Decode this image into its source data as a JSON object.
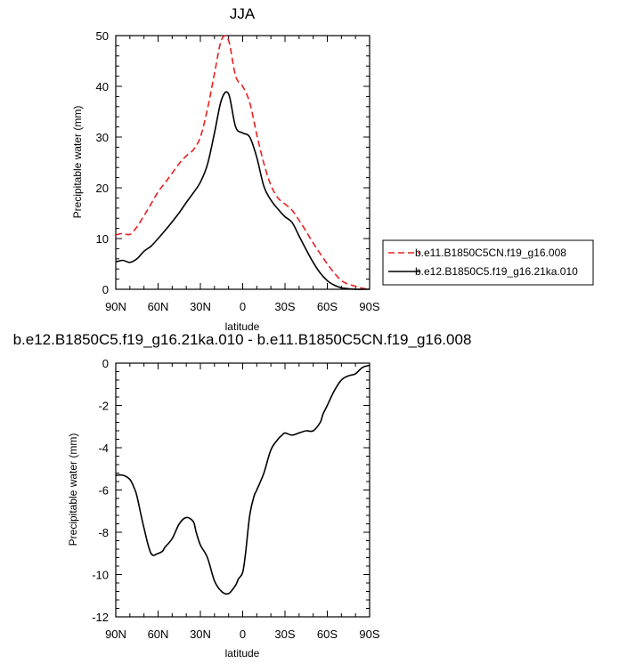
{
  "chart_data": [
    {
      "type": "line",
      "title": "JJA",
      "xlabel": "latitude",
      "ylabel": "Precipitable water (mm)",
      "xlim": [
        90,
        -90
      ],
      "ylim": [
        0,
        50
      ],
      "x_ticks": [
        90,
        60,
        30,
        0,
        -30,
        -60,
        -90
      ],
      "x_tick_labels": [
        "90N",
        "60N",
        "30N",
        "0",
        "30S",
        "60S",
        "90S"
      ],
      "y_ticks": [
        0,
        10,
        20,
        30,
        40,
        50
      ],
      "y_tick_labels": [
        "0",
        "10",
        "20",
        "30",
        "40",
        "50"
      ],
      "legend_position": "outside-right",
      "x": [
        90,
        85,
        80,
        75,
        70,
        65,
        60,
        55,
        50,
        45,
        40,
        35,
        30,
        25,
        20,
        15,
        10,
        5,
        0,
        -5,
        -10,
        -15,
        -20,
        -25,
        -30,
        -35,
        -40,
        -45,
        -50,
        -55,
        -60,
        -65,
        -70,
        -75,
        -80,
        -85,
        -90
      ],
      "series": [
        {
          "name": "b.e11.B1850C5CN.f19_g16.008",
          "color": "#e8201f",
          "dash": "dashed",
          "values": [
            10.7,
            11.0,
            10.8,
            12.3,
            14.5,
            16.8,
            19.2,
            21.0,
            22.9,
            24.8,
            26.3,
            27.5,
            30.0,
            35.5,
            42.5,
            49.2,
            49.0,
            42.0,
            40.0,
            36.8,
            30.5,
            24.8,
            20.5,
            18.0,
            16.8,
            15.6,
            13.6,
            11.4,
            9.1,
            7.0,
            5.0,
            3.2,
            1.7,
            1.0,
            0.6,
            0.2,
            0.0
          ]
        },
        {
          "name": "b.e12.B1850C5.f19_g16.21ka.010",
          "color": "#000000",
          "dash": "solid",
          "values": [
            5.4,
            5.7,
            5.3,
            6.0,
            7.5,
            8.5,
            10.0,
            11.6,
            13.3,
            15.1,
            17.1,
            19.0,
            21.1,
            24.6,
            30.8,
            37.4,
            38.5,
            32.0,
            30.8,
            30.0,
            26.0,
            20.3,
            17.6,
            15.8,
            14.3,
            13.2,
            10.5,
            7.8,
            5.3,
            3.2,
            1.7,
            0.8,
            0.3,
            0.1,
            0.0,
            0.0,
            0.0
          ]
        }
      ]
    },
    {
      "type": "line",
      "title": "b.e12.B1850C5.f19_g16.21ka.010 - b.e11.B1850C5CN.f19_g16.008",
      "xlabel": "latitude",
      "ylabel": "Precipitable water (mm)",
      "xlim": [
        90,
        -90
      ],
      "ylim": [
        -12,
        0
      ],
      "x_ticks": [
        90,
        60,
        30,
        0,
        -30,
        -60,
        -90
      ],
      "x_tick_labels": [
        "90N",
        "60N",
        "30N",
        "0",
        "30S",
        "60S",
        "90S"
      ],
      "y_ticks": [
        0,
        -2,
        -4,
        -6,
        -8,
        -10,
        -12
      ],
      "y_tick_labels": [
        "0",
        "-2",
        "-4",
        "-6",
        "-8",
        "-10",
        "-12"
      ],
      "x": [
        90,
        85,
        80,
        77,
        75,
        70,
        65,
        60,
        57,
        55,
        50,
        45,
        40,
        35,
        33,
        30,
        25,
        20,
        15,
        10,
        5,
        3,
        0,
        -2,
        -5,
        -8,
        -10,
        -15,
        -20,
        -25,
        -28,
        -30,
        -35,
        -40,
        -45,
        -50,
        -55,
        -57,
        -60,
        -65,
        -70,
        -75,
        -80,
        -85,
        -90
      ],
      "series": [
        {
          "name": "",
          "color": "#000000",
          "dash": "solid",
          "values": [
            -5.3,
            -5.3,
            -5.5,
            -5.9,
            -6.3,
            -7.8,
            -9.0,
            -9.0,
            -8.9,
            -8.7,
            -8.3,
            -7.6,
            -7.3,
            -7.5,
            -8.0,
            -8.6,
            -9.2,
            -10.3,
            -10.8,
            -10.9,
            -10.5,
            -10.2,
            -9.9,
            -9.0,
            -7.2,
            -6.3,
            -6.0,
            -5.2,
            -4.1,
            -3.6,
            -3.4,
            -3.3,
            -3.4,
            -3.3,
            -3.2,
            -3.2,
            -2.8,
            -2.4,
            -2.0,
            -1.3,
            -0.8,
            -0.6,
            -0.5,
            -0.2,
            -0.1
          ]
        }
      ]
    }
  ]
}
